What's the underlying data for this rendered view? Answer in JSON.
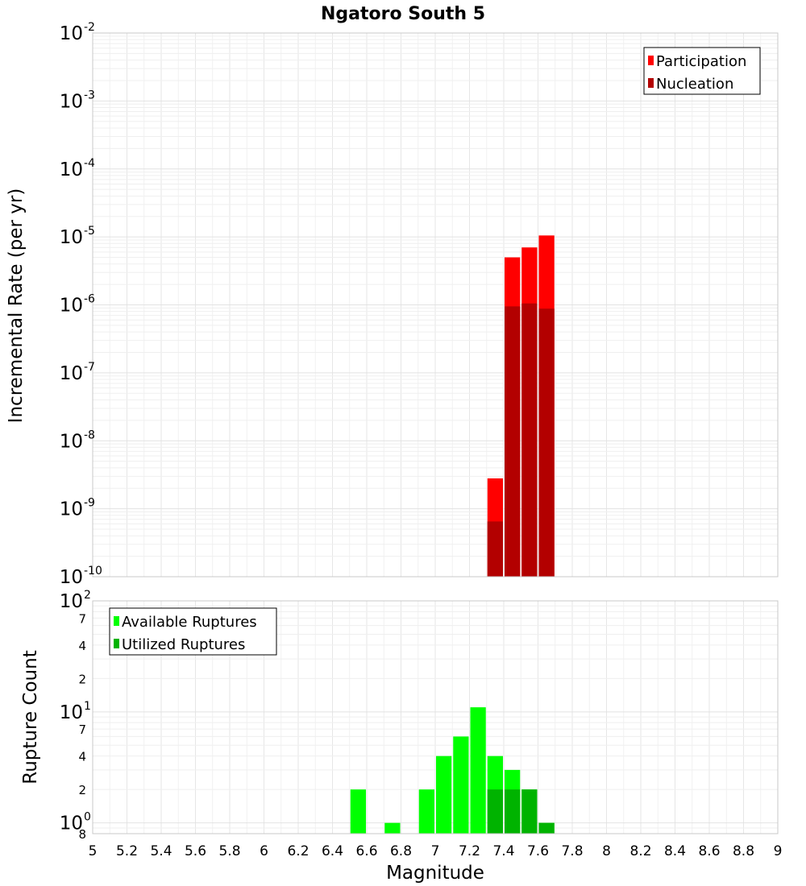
{
  "chart_data": [
    {
      "type": "bar",
      "title": "Ngatoro South 5",
      "ylabel": "Incremental Rate (per yr)",
      "xlabel": "",
      "yscale": "log",
      "ylim": [
        1e-10,
        0.01
      ],
      "xlim": [
        5,
        9
      ],
      "bar_width": 0.1,
      "grid": true,
      "legend_position": "top-right",
      "y_ticks": [
        {
          "base": "10",
          "exp": "-10",
          "value": 1e-10
        },
        {
          "base": "10",
          "exp": "-9",
          "value": 1e-09
        },
        {
          "base": "10",
          "exp": "-8",
          "value": 1e-08
        },
        {
          "base": "10",
          "exp": "-7",
          "value": 1e-07
        },
        {
          "base": "10",
          "exp": "-6",
          "value": 1e-06
        },
        {
          "base": "10",
          "exp": "-5",
          "value": 1e-05
        },
        {
          "base": "10",
          "exp": "-4",
          "value": 0.0001
        },
        {
          "base": "10",
          "exp": "-3",
          "value": 0.001
        },
        {
          "base": "10",
          "exp": "-2",
          "value": 0.01
        }
      ],
      "series": [
        {
          "name": "Participation",
          "color": "#ff0000",
          "x": [
            7.35,
            7.45,
            7.55,
            7.65
          ],
          "values": [
            2.8e-09,
            5e-06,
            7e-06,
            1.05e-05
          ]
        },
        {
          "name": "Nucleation",
          "color": "#b30000",
          "x": [
            7.35,
            7.45,
            7.55,
            7.65
          ],
          "values": [
            6.5e-10,
            9.5e-07,
            1.05e-06,
            8.8e-07
          ]
        }
      ]
    },
    {
      "type": "bar",
      "title": "",
      "ylabel": "Rupture Count",
      "xlabel": "Magnitude",
      "yscale": "log",
      "ylim": [
        0.8,
        100
      ],
      "xlim": [
        5,
        9
      ],
      "bar_width": 0.1,
      "grid": true,
      "legend_position": "top-left",
      "x_ticks": [
        "5",
        "5.2",
        "5.4",
        "5.6",
        "5.8",
        "6",
        "6.2",
        "6.4",
        "6.6",
        "6.8",
        "7",
        "7.2",
        "7.4",
        "7.6",
        "7.8",
        "8",
        "8.2",
        "8.4",
        "8.6",
        "8.8",
        "9"
      ],
      "y_major_ticks": [
        {
          "base": "10",
          "exp": "0",
          "value": 1
        },
        {
          "base": "10",
          "exp": "1",
          "value": 10
        },
        {
          "base": "10",
          "exp": "2",
          "value": 100
        }
      ],
      "y_minor_ticks": [
        {
          "label": "8",
          "value": 0.8
        },
        {
          "label": "2",
          "value": 2
        },
        {
          "label": "4",
          "value": 4
        },
        {
          "label": "7",
          "value": 7
        },
        {
          "label": "2",
          "value": 20
        },
        {
          "label": "4",
          "value": 40
        },
        {
          "label": "7",
          "value": 70
        }
      ],
      "series": [
        {
          "name": "Available Ruptures",
          "color": "#00ff00",
          "x": [
            6.55,
            6.75,
            6.95,
            7.05,
            7.15,
            7.25,
            7.35,
            7.45,
            7.55,
            7.65
          ],
          "values": [
            2,
            1,
            2,
            4,
            6,
            11,
            4,
            3,
            2,
            1
          ]
        },
        {
          "name": "Utilized Ruptures",
          "color": "#00b300",
          "x": [
            7.35,
            7.45,
            7.55,
            7.65
          ],
          "values": [
            2,
            2,
            2,
            1
          ]
        }
      ]
    }
  ]
}
